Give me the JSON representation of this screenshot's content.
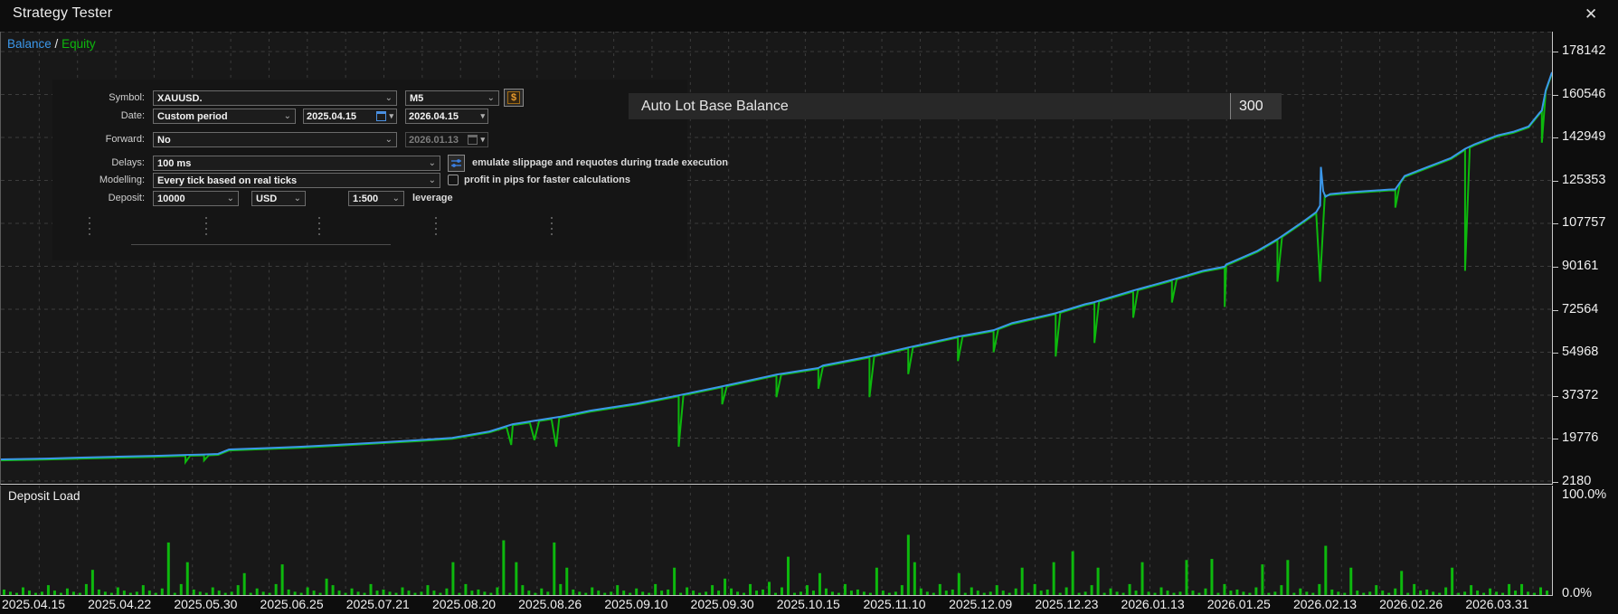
{
  "window": {
    "title": "Strategy Tester",
    "close_icon": "✕"
  },
  "icons": {
    "chevron": "⌄",
    "date_arrow": "▾",
    "dollar": "$"
  },
  "legend": {
    "balance": "Balance",
    "separator": " / ",
    "equity": "Equity"
  },
  "colors": {
    "balance": "#3b97ea",
    "equity": "#0db80d",
    "bars": "#0db80d",
    "grid": "#3d3d3d",
    "axis": "#c8c8c8"
  },
  "settings": {
    "symbol_label": "Symbol:",
    "symbol_value": "XAUUSD.",
    "period_value": "M5",
    "date_label": "Date:",
    "date_mode": "Custom period",
    "date_from": "2025.04.15",
    "date_to": "2026.04.15",
    "forward_label": "Forward:",
    "forward_value": "No",
    "forward_date": "2026.01.13",
    "delays_label": "Delays:",
    "delays_value": "100 ms",
    "slippage_note": "emulate slippage and requotes during trade execution",
    "modelling_label": "Modelling:",
    "modelling_value": "Every tick based on real ticks",
    "pips_note": "profit in pips for faster calculations",
    "deposit_label": "Deposit:",
    "deposit_value": "10000",
    "currency_value": "USD",
    "leverage_value": "1:500",
    "leverage_note": "leverage"
  },
  "param_row": {
    "name": "Auto Lot Base Balance",
    "value": "300"
  },
  "lower_panel": {
    "title": "Deposit Load",
    "top_label": "100.0%",
    "bottom_label": "0.0%"
  },
  "chart_data": {
    "type": "line",
    "title": "Balance / Equity",
    "y_axis_labels": [
      "178142",
      "160546",
      "142949",
      "125353",
      "107757",
      "90161",
      "72564",
      "54968",
      "37372",
      "19776",
      "2180"
    ],
    "x_axis_labels": [
      "2025.04.15",
      "2025.04.22",
      "2025.05.30",
      "2025.06.25",
      "2025.07.21",
      "2025.08.20",
      "2025.08.26",
      "2025.09.10",
      "2025.09.30",
      "2025.10.15",
      "2025.11.10",
      "2025.12.09",
      "2025.12.23",
      "2026.01.13",
      "2026.01.25",
      "2026.02.13",
      "2026.02.26",
      "2026.03.31"
    ],
    "series": [
      {
        "name": "Balance",
        "color": "#3b97ea",
        "points": [
          [
            0,
            11050
          ],
          [
            0.03,
            11400
          ],
          [
            0.052,
            11800
          ],
          [
            0.075,
            12150
          ],
          [
            0.099,
            12500
          ],
          [
            0.119,
            12900
          ],
          [
            0.131,
            13100
          ],
          [
            0.14,
            13300
          ],
          [
            0.147,
            15100
          ],
          [
            0.17,
            15650
          ],
          [
            0.192,
            16200
          ],
          [
            0.215,
            16950
          ],
          [
            0.245,
            18050
          ],
          [
            0.27,
            19000
          ],
          [
            0.291,
            19900
          ],
          [
            0.315,
            22500
          ],
          [
            0.33,
            25450
          ],
          [
            0.36,
            28450
          ],
          [
            0.38,
            31000
          ],
          [
            0.41,
            33950
          ],
          [
            0.437,
            37300
          ],
          [
            0.465,
            41000
          ],
          [
            0.5,
            45800
          ],
          [
            0.527,
            48500
          ],
          [
            0.53,
            49500
          ],
          [
            0.56,
            53200
          ],
          [
            0.585,
            56900
          ],
          [
            0.617,
            61350
          ],
          [
            0.64,
            64000
          ],
          [
            0.652,
            66900
          ],
          [
            0.68,
            70950
          ],
          [
            0.699,
            74650
          ],
          [
            0.705,
            75500
          ],
          [
            0.73,
            80200
          ],
          [
            0.755,
            84600
          ],
          [
            0.775,
            88300
          ],
          [
            0.789,
            90000
          ],
          [
            0.79,
            90900
          ],
          [
            0.81,
            96450
          ],
          [
            0.823,
            101250
          ],
          [
            0.84,
            108650
          ],
          [
            0.848,
            112350
          ],
          [
            0.8505,
            115000
          ],
          [
            0.851,
            130850
          ],
          [
            0.8525,
            121000
          ],
          [
            0.854,
            118650
          ],
          [
            0.857,
            119750
          ],
          [
            0.87,
            120500
          ],
          [
            0.895,
            121600
          ],
          [
            0.899,
            121700
          ],
          [
            0.905,
            127150
          ],
          [
            0.92,
            130850
          ],
          [
            0.935,
            134550
          ],
          [
            0.944,
            138250
          ],
          [
            0.95,
            140100
          ],
          [
            0.965,
            143800
          ],
          [
            0.975,
            145250
          ],
          [
            0.985,
            147450
          ],
          [
            0.992,
            153000
          ],
          [
            0.9935,
            154000
          ],
          [
            0.996,
            162250
          ],
          [
            1,
            169650
          ]
        ]
      },
      {
        "name": "Equity",
        "color": "#0db80d",
        "follows": "Balance",
        "offset": -400,
        "skip": [
          [
            0.8495,
            0.8545
          ]
        ],
        "dips": [
          [
            0.119,
            9950
          ],
          [
            0.131,
            10650
          ],
          [
            0.329,
            17000
          ],
          [
            0.344,
            19000
          ],
          [
            0.358,
            16250
          ],
          [
            0.437,
            16250
          ],
          [
            0.465,
            33600
          ],
          [
            0.5,
            36550
          ],
          [
            0.527,
            40000
          ],
          [
            0.56,
            36550
          ],
          [
            0.585,
            46000
          ],
          [
            0.617,
            51350
          ],
          [
            0.64,
            55000
          ],
          [
            0.68,
            53200
          ],
          [
            0.705,
            58750
          ],
          [
            0.73,
            69100
          ],
          [
            0.755,
            75350
          ],
          [
            0.789,
            73500
          ],
          [
            0.823,
            83850
          ],
          [
            0.8505,
            83850
          ],
          [
            0.899,
            114200
          ],
          [
            0.944,
            88300
          ],
          [
            0.9935,
            140800
          ]
        ]
      }
    ],
    "deposit_load": {
      "type": "bar",
      "ylim": [
        "0.0%",
        "100.0%"
      ],
      "bar_color": "#0db80d",
      "values_pct": [
        5,
        3,
        2,
        7,
        4,
        2,
        3,
        9,
        4,
        2,
        6,
        3,
        2,
        10,
        23,
        5,
        3,
        2,
        7,
        4,
        2,
        3,
        9,
        4,
        2,
        6,
        48,
        2,
        10,
        30,
        5,
        3,
        2,
        7,
        4,
        2,
        3,
        9,
        20,
        2,
        6,
        3,
        2,
        10,
        28,
        5,
        3,
        2,
        7,
        4,
        2,
        15,
        9,
        4,
        2,
        6,
        3,
        2,
        10,
        4,
        5,
        3,
        2,
        7,
        4,
        2,
        3,
        9,
        4,
        2,
        6,
        30,
        2,
        10,
        4,
        5,
        3,
        2,
        7,
        50,
        2,
        30,
        9,
        4,
        2,
        6,
        3,
        48,
        10,
        25,
        5,
        3,
        2,
        7,
        4,
        2,
        3,
        9,
        4,
        2,
        6,
        3,
        2,
        10,
        4,
        5,
        25,
        2,
        7,
        4,
        2,
        3,
        9,
        4,
        15,
        6,
        3,
        2,
        10,
        4,
        5,
        12,
        2,
        7,
        35,
        2,
        3,
        9,
        4,
        20,
        6,
        3,
        2,
        10,
        4,
        5,
        3,
        2,
        25,
        4,
        2,
        3,
        9,
        55,
        30,
        6,
        3,
        2,
        10,
        4,
        5,
        20,
        2,
        7,
        4,
        2,
        3,
        9,
        4,
        2,
        6,
        25,
        2,
        10,
        4,
        5,
        30,
        2,
        7,
        40,
        2,
        3,
        9,
        25,
        2,
        6,
        3,
        2,
        10,
        4,
        30,
        3,
        2,
        7,
        4,
        2,
        3,
        32,
        4,
        2,
        6,
        33,
        2,
        10,
        4,
        5,
        3,
        2,
        7,
        28,
        2,
        3,
        9,
        32,
        2,
        6,
        3,
        2,
        10,
        45,
        5,
        3,
        2,
        25,
        4,
        2,
        3,
        9,
        4,
        2,
        6,
        22,
        2,
        10,
        4,
        5,
        3,
        2,
        7,
        25,
        2,
        3,
        9,
        4,
        2,
        6,
        3,
        2,
        10,
        4,
        10,
        3,
        2,
        7,
        4
      ]
    }
  }
}
